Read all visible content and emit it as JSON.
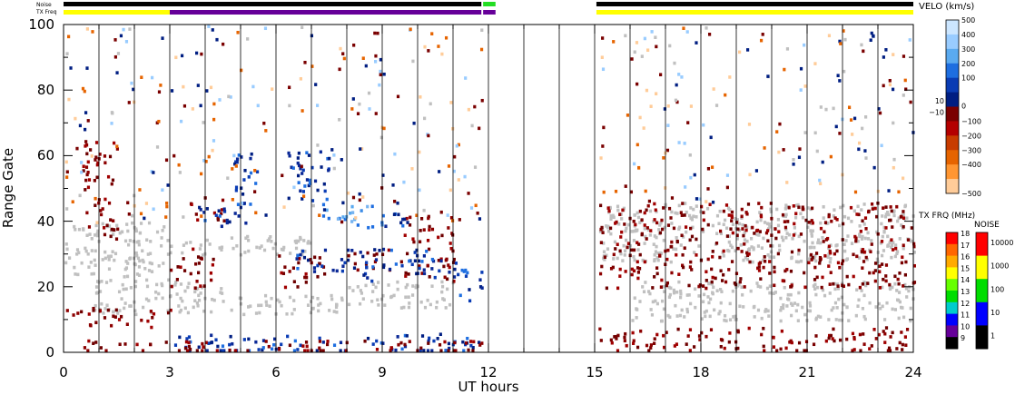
{
  "chart_data": {
    "type": "heatmap",
    "title": "",
    "xlabel": "UT hours",
    "ylabel": "Range Gate",
    "xlim": [
      0,
      24
    ],
    "ylim": [
      0,
      100
    ],
    "x_ticks": [
      "0",
      "3",
      "6",
      "9",
      "12",
      "15",
      "18",
      "21",
      "24"
    ],
    "y_ticks": [
      "0",
      "20",
      "40",
      "60",
      "80",
      "100"
    ],
    "status_bars": [
      {
        "label": "Noise",
        "segments": [
          {
            "from": 0,
            "to": 11.8,
            "color": "#000000"
          },
          {
            "from": 11.85,
            "to": 12.2,
            "color": "#22dd22"
          },
          {
            "from": 15.05,
            "to": 24,
            "color": "#000000"
          }
        ]
      },
      {
        "label": "TX Freq",
        "segments": [
          {
            "from": 0,
            "to": 3.0,
            "color": "#ffff00"
          },
          {
            "from": 3.0,
            "to": 11.8,
            "color": "#660099"
          },
          {
            "from": 11.85,
            "to": 12.2,
            "color": "#660099"
          },
          {
            "from": 15.05,
            "to": 24,
            "color": "#ffff00"
          }
        ]
      }
    ],
    "velocity_scale": {
      "label": "VELO (km/s)",
      "ticks": [
        "500",
        "400",
        "300",
        "200",
        "100",
        "10",
        "0",
        "−10",
        "−100",
        "−200",
        "−300",
        "−400",
        "−500"
      ],
      "colors": [
        "#cce6ff",
        "#99ccff",
        "#5aaaf0",
        "#1e6ee0",
        "#0a3cb4",
        "#001e82",
        "#7a0000",
        "#b40000",
        "#c83c00",
        "#e66400",
        "#ff9632",
        "#ffcc99"
      ]
    },
    "txfreq_scale": {
      "label": "TX FRQ (MHz)",
      "ticks": [
        "18",
        "17",
        "16",
        "15",
        "14",
        "13",
        "12",
        "11",
        "10",
        "9"
      ],
      "colors": [
        "#ff0000",
        "#ff6600",
        "#ffaa00",
        "#ffff00",
        "#66ff00",
        "#00dd00",
        "#00cccc",
        "#0000ff",
        "#660099",
        "#000000"
      ]
    },
    "noise_scale": {
      "label": "NOISE",
      "ticks": [
        "10000",
        "1000",
        "100",
        "10",
        "1"
      ],
      "colors": [
        "#ff0000",
        "#ffff00",
        "#00dd00",
        "#0000ff",
        "#000000"
      ]
    },
    "regions": [
      {
        "x0": 0.0,
        "x1": 3.0,
        "y0": 22,
        "y1": 40,
        "kind": "ground"
      },
      {
        "x0": 0.8,
        "x1": 4.5,
        "y0": 12,
        "y1": 22,
        "kind": "ground"
      },
      {
        "x0": 4.5,
        "x1": 7.8,
        "y0": 12,
        "y1": 18,
        "kind": "ground"
      },
      {
        "x0": 7.8,
        "x1": 11.0,
        "y0": 14,
        "y1": 22,
        "kind": "ground"
      },
      {
        "x0": 3.0,
        "x1": 7.0,
        "y0": 30,
        "y1": 36,
        "kind": "ground"
      },
      {
        "x0": 15.1,
        "x1": 24.0,
        "y0": 28,
        "y1": 46,
        "kind": "ground"
      },
      {
        "x0": 16.0,
        "x1": 24.0,
        "y0": 10,
        "y1": 22,
        "kind": "ground"
      },
      {
        "x0": 0.0,
        "x1": 3.0,
        "y0": 8,
        "y1": 14,
        "kind": "neg"
      },
      {
        "x0": 0.5,
        "x1": 1.5,
        "y0": 35,
        "y1": 68,
        "kind": "neg"
      },
      {
        "x0": 3.0,
        "x1": 4.2,
        "y0": 20,
        "y1": 32,
        "kind": "neg"
      },
      {
        "x0": 3.5,
        "x1": 4.5,
        "y0": 40,
        "y1": 48,
        "kind": "neg"
      },
      {
        "x0": 6.0,
        "x1": 7.5,
        "y0": 20,
        "y1": 30,
        "kind": "neg"
      },
      {
        "x0": 8.0,
        "x1": 9.2,
        "y0": 25,
        "y1": 32,
        "kind": "neg"
      },
      {
        "x0": 9.5,
        "x1": 11.0,
        "y0": 22,
        "y1": 42,
        "kind": "neg"
      },
      {
        "x0": 3.8,
        "x1": 5.2,
        "y0": 38,
        "y1": 45,
        "kind": "pos"
      },
      {
        "x0": 4.8,
        "x1": 5.5,
        "y0": 44,
        "y1": 62,
        "kind": "pos"
      },
      {
        "x0": 6.3,
        "x1": 7.5,
        "y0": 45,
        "y1": 62,
        "kind": "pos"
      },
      {
        "x0": 6.5,
        "x1": 8.5,
        "y0": 24,
        "y1": 32,
        "kind": "pos"
      },
      {
        "x0": 8.5,
        "x1": 11.0,
        "y0": 22,
        "y1": 32,
        "kind": "pos"
      },
      {
        "x0": 7.3,
        "x1": 9.0,
        "y0": 38,
        "y1": 46,
        "kind": "bright"
      },
      {
        "x0": 9.0,
        "x1": 9.8,
        "y0": 38,
        "y1": 44,
        "kind": "pos"
      },
      {
        "x0": 11.0,
        "x1": 11.8,
        "y0": 16,
        "y1": 28,
        "kind": "pos"
      },
      {
        "x0": 3.0,
        "x1": 11.8,
        "y0": 0,
        "y1": 6,
        "kind": "pos"
      },
      {
        "x0": 0.0,
        "x1": 11.8,
        "y0": 0,
        "y1": 4,
        "kind": "neg"
      },
      {
        "x0": 15.1,
        "x1": 24.0,
        "y0": 0,
        "y1": 8,
        "kind": "neg"
      },
      {
        "x0": 15.1,
        "x1": 24.0,
        "y0": 20,
        "y1": 46,
        "kind": "neg"
      },
      {
        "x0": 0.0,
        "x1": 11.8,
        "y0": 40,
        "y1": 100,
        "kind": "sparse"
      },
      {
        "x0": 15.1,
        "x1": 24.0,
        "y0": 46,
        "y1": 100,
        "kind": "sparse"
      }
    ]
  }
}
